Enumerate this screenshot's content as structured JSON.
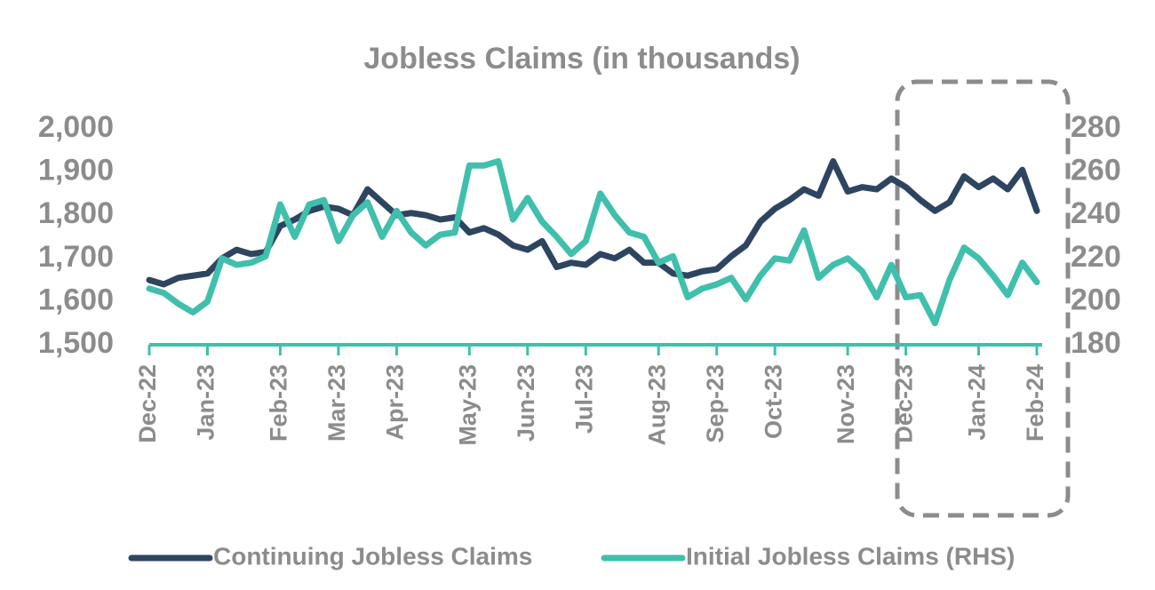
{
  "chart_data": {
    "type": "line",
    "title": "Jobless Claims (in thousands)",
    "categories": [
      "Dec-22",
      null,
      null,
      null,
      "Jan-23",
      null,
      null,
      null,
      null,
      "Feb-23",
      null,
      null,
      null,
      "Mar-23",
      null,
      null,
      null,
      "Apr-23",
      null,
      null,
      null,
      null,
      "May-23",
      null,
      null,
      null,
      "Jun-23",
      null,
      null,
      null,
      "Jul-23",
      null,
      null,
      null,
      null,
      "Aug-23",
      null,
      null,
      null,
      "Sep-23",
      null,
      null,
      null,
      "Oct-23",
      null,
      null,
      null,
      null,
      "Nov-23",
      null,
      null,
      null,
      "Dec-23",
      null,
      null,
      null,
      null,
      "Jan-24",
      null,
      null,
      null,
      "Feb-24"
    ],
    "series": [
      {
        "name": "Continuing Jobless Claims",
        "color": "#2e4561",
        "values": [
          1650,
          1640,
          1655,
          1660,
          1665,
          1700,
          1720,
          1710,
          1715,
          1775,
          1790,
          1810,
          1820,
          1815,
          1800,
          1860,
          1830,
          1800,
          1805,
          1800,
          1790,
          1795,
          1760,
          1770,
          1755,
          1730,
          1720,
          1740,
          1680,
          1690,
          1685,
          1710,
          1700,
          1720,
          1690,
          1690,
          1665,
          1660,
          1670,
          1675,
          1705,
          1730,
          1785,
          1815,
          1835,
          1860,
          1845,
          1925,
          1855,
          1865,
          1860,
          1885,
          1865,
          1835,
          1810,
          1830,
          1890,
          1865,
          1885,
          1860,
          1905,
          1810
        ]
      },
      {
        "name": "Initial Jobless Claims (RHS)",
        "color": "#40bfad",
        "axis": "y2",
        "values": [
          206,
          204,
          199,
          195,
          200,
          220,
          217,
          218,
          221,
          245,
          230,
          245,
          247,
          228,
          240,
          246,
          230,
          242,
          232,
          226,
          231,
          232,
          263,
          263,
          265,
          238,
          248,
          237,
          230,
          222,
          228,
          250,
          240,
          232,
          230,
          218,
          221,
          202,
          206,
          208,
          211,
          201,
          212,
          220,
          219,
          233,
          211,
          217,
          220,
          214,
          202,
          217,
          202,
          203,
          190,
          210,
          225,
          220,
          212,
          203,
          218,
          209
        ]
      }
    ],
    "ylim": [
      1500,
      2000
    ],
    "yticks": [
      {
        "value": 1500,
        "label": "1,500"
      },
      {
        "value": 1600,
        "label": "1,600"
      },
      {
        "value": 1700,
        "label": "1,700"
      },
      {
        "value": 1800,
        "label": "1,800"
      },
      {
        "value": 1900,
        "label": "1,900"
      },
      {
        "value": 2000,
        "label": "2,000"
      }
    ],
    "y2lim": [
      180,
      280
    ],
    "y2ticks": [
      180,
      200,
      220,
      240,
      260,
      280
    ],
    "legend": "bottom"
  }
}
